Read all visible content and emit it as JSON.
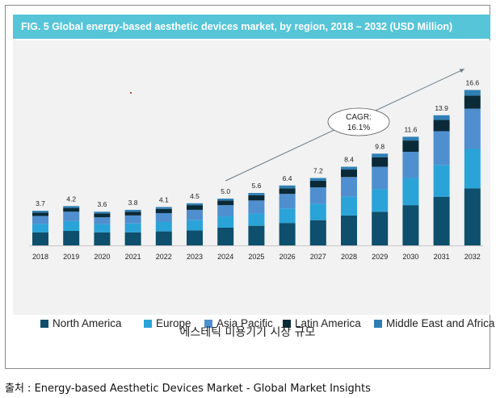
{
  "banner": {
    "title": "FIG. 5   Global energy-based aesthetic devices market, by region, 2018 – 2032 (USD Million)"
  },
  "caption": "에스테틱 미용기기 시장 규모",
  "source": "출처 : Energy-based Aesthetic Devices Market - Global Market Insights",
  "chart_data": {
    "type": "bar",
    "stacked": true,
    "title": "FIG. 5   Global energy-based aesthetic devices market, by region, 2018 – 2032 (USD Million)",
    "xlabel": "",
    "ylabel": "",
    "categories": [
      "2018",
      "2019",
      "2020",
      "2021",
      "2022",
      "2023",
      "2024",
      "2025",
      "2026",
      "2027",
      "2028",
      "2029",
      "2030",
      "2031",
      "2032"
    ],
    "totals": [
      "3.7",
      "4.2",
      "3.6",
      "3.8",
      "4.1",
      "4.5",
      "5.0",
      "5.6",
      "6.4",
      "7.2",
      "8.4",
      "9.8",
      "11.6",
      "13.9",
      "16.6"
    ],
    "series": [
      {
        "name": "North America",
        "color": "#0d4f6c",
        "values": [
          1.4,
          1.55,
          1.4,
          1.4,
          1.5,
          1.6,
          1.9,
          2.1,
          2.4,
          2.7,
          3.2,
          3.6,
          4.3,
          5.2,
          6.1
        ]
      },
      {
        "name": "Europe",
        "color": "#2aa4d8",
        "values": [
          0.9,
          1.05,
          0.85,
          0.95,
          1.0,
          1.1,
          1.2,
          1.3,
          1.55,
          1.75,
          2.0,
          2.4,
          2.9,
          3.4,
          4.2
        ]
      },
      {
        "name": "Asia Pacific",
        "color": "#4f8fcf",
        "values": [
          0.85,
          1.0,
          0.75,
          0.85,
          0.95,
          1.1,
          1.2,
          1.4,
          1.55,
          1.75,
          2.1,
          2.4,
          2.8,
          3.6,
          4.3
        ]
      },
      {
        "name": "Latin America",
        "color": "#0a2a38",
        "values": [
          0.35,
          0.4,
          0.4,
          0.4,
          0.45,
          0.5,
          0.5,
          0.55,
          0.6,
          0.7,
          0.8,
          1.0,
          1.2,
          1.2,
          1.4
        ]
      },
      {
        "name": "Middle East and Africa",
        "color": "#2f7fb4",
        "values": [
          0.2,
          0.2,
          0.2,
          0.2,
          0.2,
          0.2,
          0.2,
          0.25,
          0.3,
          0.3,
          0.3,
          0.4,
          0.4,
          0.5,
          0.6
        ]
      }
    ],
    "ylim": [
      0,
      17.5
    ],
    "grid": false,
    "legend_position": "bottom",
    "annotation": {
      "text_lines": [
        "CAGR:",
        "16.1%"
      ],
      "arrow_from_year": "2024",
      "arrow_to_year": "2032"
    }
  }
}
